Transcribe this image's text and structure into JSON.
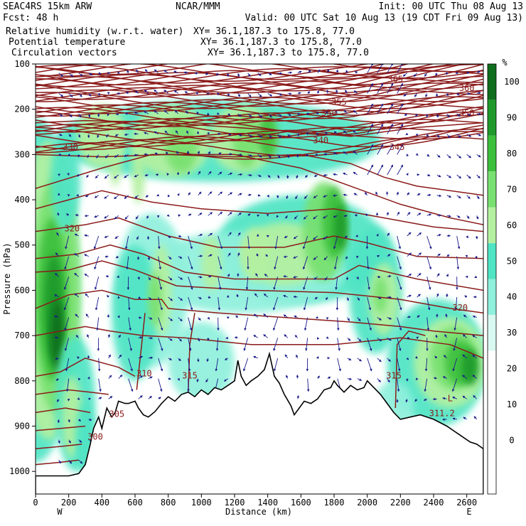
{
  "header": {
    "left_line1": "SEAC4RS 15km ARW",
    "left_line2": "Fcst:   48 h",
    "center_line1": "NCAR/MMM",
    "init": "Init: 00 UTC Thu 08 Aug 13",
    "valid": "Valid: 00 UTC Sat 10 Aug 13 (19 CDT Fri 09 Aug 13)",
    "fields": [
      {
        "label": "Relative humidity (w.r.t. water)",
        "xy": "XY=  36.1,187.3 to 175.8, 77.0",
        "color": "#000000"
      },
      {
        "label": "Potential temperature",
        "xy": "XY=  36.1,187.3 to 175.8, 77.0",
        "color": "#8b1a1a"
      },
      {
        "label": "Circulation vectors",
        "xy": "XY=  36.1,187.3 to 175.8, 77.0",
        "color": "#1a1a8b"
      }
    ]
  },
  "chart_data": {
    "type": "heatmap",
    "title": "",
    "xlabel": "Distance (km)",
    "ylabel": "Pressure (hPa)",
    "xlim": [
      0,
      2700
    ],
    "ylim": [
      1050,
      100
    ],
    "x_ticks": [
      0,
      200,
      400,
      600,
      800,
      1000,
      1200,
      1400,
      1600,
      1800,
      2000,
      2200,
      2400,
      2600
    ],
    "x_tick_labels": [
      "0",
      "200",
      "400",
      "600",
      "800",
      "1000",
      "1200",
      "1400",
      "1600",
      "1800",
      "2000",
      "2200",
      "2400",
      "2600"
    ],
    "y_ticks": [
      100,
      200,
      300,
      400,
      500,
      600,
      700,
      800,
      900,
      1000
    ],
    "y_tick_labels": [
      "100",
      "200",
      "300",
      "400",
      "500",
      "600",
      "700",
      "800",
      "900",
      "1000"
    ],
    "end_labels": {
      "left": "W",
      "right": "E"
    },
    "colorbar": {
      "unit": "%",
      "levels": [
        -10,
        0,
        10,
        20,
        30,
        40,
        50,
        60,
        70,
        80,
        90,
        100,
        110
      ],
      "tick_labels": [
        "0",
        "10",
        "20",
        "30",
        "40",
        "50",
        "60",
        "70",
        "80",
        "90",
        "100"
      ],
      "colors": [
        "#ffffff",
        "#ffffff",
        "#ffffff",
        "#ffffff",
        "#d8f8f0",
        "#8ff0dc",
        "#4fe4c4",
        "#b4f0a0",
        "#78e070",
        "#3cc03c",
        "#1f9a2a",
        "#0f6e1e"
      ]
    },
    "theta_contour_labels": [
      {
        "text": "330",
        "x": 210,
        "p": 290
      },
      {
        "text": "320",
        "x": 220,
        "p": 470
      },
      {
        "text": "340",
        "x": 1720,
        "p": 275
      },
      {
        "text": "350",
        "x": 1770,
        "p": 215
      },
      {
        "text": "355",
        "x": 1830,
        "p": 190
      },
      {
        "text": "365",
        "x": 2170,
        "p": 140
      },
      {
        "text": "360",
        "x": 2600,
        "p": 160
      },
      {
        "text": "350",
        "x": 2600,
        "p": 215
      },
      {
        "text": "345",
        "x": 2180,
        "p": 290
      },
      {
        "text": "320",
        "x": 2560,
        "p": 645
      },
      {
        "text": "310",
        "x": 655,
        "p": 790
      },
      {
        "text": "315",
        "x": 930,
        "p": 795
      },
      {
        "text": "315",
        "x": 2160,
        "p": 795
      },
      {
        "text": "305",
        "x": 490,
        "p": 880
      },
      {
        "text": "300",
        "x": 360,
        "p": 930
      }
    ],
    "annotations": [
      {
        "text": "L",
        "x": 2500,
        "p": 845
      },
      {
        "text": "311.2",
        "x": 2450,
        "p": 878
      }
    ]
  }
}
